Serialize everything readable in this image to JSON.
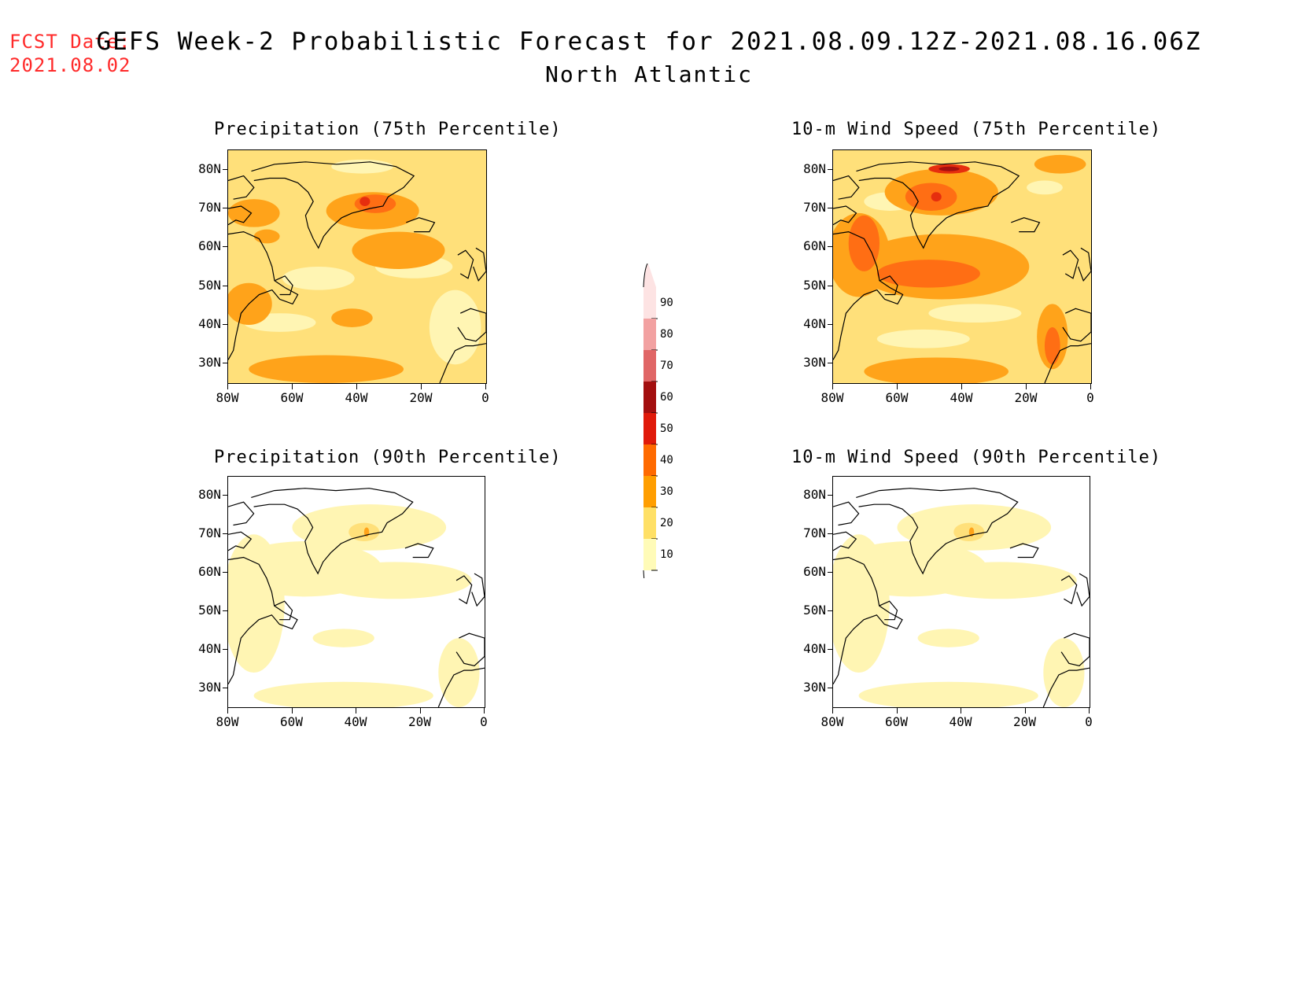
{
  "header": {
    "fcst_label": "FCST Date:",
    "fcst_date": "2021.08.02",
    "title": "GEFS Week-2 Probabilistic Forecast for 2021.08.09.12Z-2021.08.16.06Z",
    "region": "North Atlantic"
  },
  "axes": {
    "lat_labels": [
      "80N",
      "70N",
      "60N",
      "50N",
      "40N",
      "30N"
    ],
    "lon_labels": [
      "80W",
      "60W",
      "40W",
      "20W",
      "0"
    ]
  },
  "panels": [
    {
      "title": "Precipitation (75th Percentile)",
      "level": "high"
    },
    {
      "title": "10-m Wind Speed (75th Percentile)",
      "level": "very-high"
    },
    {
      "title": "Precipitation (90th Percentile)",
      "level": "low"
    },
    {
      "title": "10-m Wind Speed (90th Percentile)",
      "level": "low"
    }
  ],
  "colorbar": {
    "labels": [
      "90",
      "80",
      "70",
      "60",
      "50",
      "40",
      "30",
      "20",
      "10"
    ],
    "colors": [
      "#fde3e3",
      "#f2a1a1",
      "#e06666",
      "#a30f0f",
      "#e01a0a",
      "#ff6a00",
      "#ff9e00",
      "#ffe066",
      "#fffbb8"
    ]
  },
  "map_colors": {
    "c10": "#fff5b3",
    "c20": "#ffe07a",
    "c30": "#ffa31a",
    "c40": "#ff6e14",
    "c50": "#e62e0e",
    "c60": "#a30f0f",
    "coast": "#000000"
  }
}
